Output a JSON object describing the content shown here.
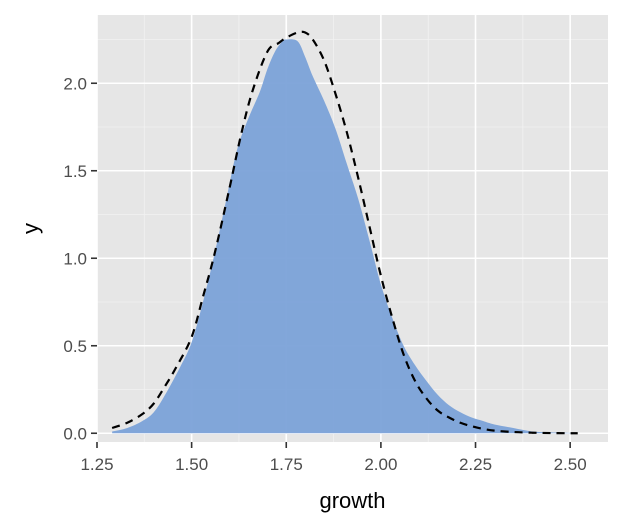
{
  "chart_data": {
    "type": "area",
    "title": "",
    "xlabel": "growth",
    "ylabel": "y",
    "xlim": [
      1.25,
      2.6
    ],
    "ylim": [
      -0.05,
      2.39
    ],
    "x_ticks": [
      1.25,
      1.5,
      1.75,
      2.0,
      2.25,
      2.5
    ],
    "x_tick_labels": [
      "1.25",
      "1.50",
      "1.75",
      "2.00",
      "2.25",
      "2.50"
    ],
    "y_ticks": [
      0.0,
      0.5,
      1.0,
      1.5,
      2.0
    ],
    "y_tick_labels": [
      "0.0",
      "0.5",
      "1.0",
      "1.5",
      "2.0"
    ],
    "grid": true,
    "panel_background": "#e6e6e6",
    "series": [
      {
        "style": "filled-area",
        "color": "#7ba2d8",
        "x": [
          1.29,
          1.33,
          1.37,
          1.4,
          1.43,
          1.47,
          1.5,
          1.53,
          1.56,
          1.59,
          1.62,
          1.65,
          1.68,
          1.7,
          1.72,
          1.74,
          1.75,
          1.78,
          1.8,
          1.82,
          1.85,
          1.88,
          1.91,
          1.94,
          1.97,
          2.0,
          2.03,
          2.06,
          2.09,
          2.12,
          2.15,
          2.18,
          2.21,
          2.24,
          2.27,
          2.3,
          2.35,
          2.4,
          2.45,
          2.5,
          2.52
        ],
        "y": [
          0.01,
          0.03,
          0.07,
          0.12,
          0.22,
          0.38,
          0.52,
          0.75,
          1.02,
          1.32,
          1.62,
          1.8,
          1.95,
          2.08,
          2.18,
          2.24,
          2.25,
          2.24,
          2.15,
          2.04,
          1.9,
          1.74,
          1.54,
          1.34,
          1.1,
          0.85,
          0.66,
          0.5,
          0.39,
          0.3,
          0.22,
          0.16,
          0.12,
          0.09,
          0.07,
          0.05,
          0.03,
          0.01,
          0.005,
          0.002,
          0.0
        ]
      },
      {
        "style": "dashed-line",
        "color": "#000000",
        "x": [
          1.29,
          1.33,
          1.37,
          1.4,
          1.43,
          1.46,
          1.5,
          1.53,
          1.56,
          1.6,
          1.63,
          1.66,
          1.7,
          1.73,
          1.75,
          1.78,
          1.8,
          1.82,
          1.85,
          1.88,
          1.91,
          1.94,
          1.97,
          2.0,
          2.03,
          2.06,
          2.09,
          2.12,
          2.15,
          2.18,
          2.21,
          2.24,
          2.27,
          2.3,
          2.35,
          2.4,
          2.45,
          2.5,
          2.52
        ],
        "y": [
          0.03,
          0.06,
          0.11,
          0.17,
          0.27,
          0.38,
          0.55,
          0.78,
          1.02,
          1.4,
          1.7,
          1.95,
          2.18,
          2.23,
          2.26,
          2.29,
          2.29,
          2.25,
          2.13,
          1.94,
          1.72,
          1.46,
          1.18,
          0.9,
          0.66,
          0.45,
          0.3,
          0.2,
          0.13,
          0.09,
          0.06,
          0.04,
          0.025,
          0.015,
          0.007,
          0.003,
          0.001,
          0.0,
          0.0
        ]
      }
    ]
  }
}
